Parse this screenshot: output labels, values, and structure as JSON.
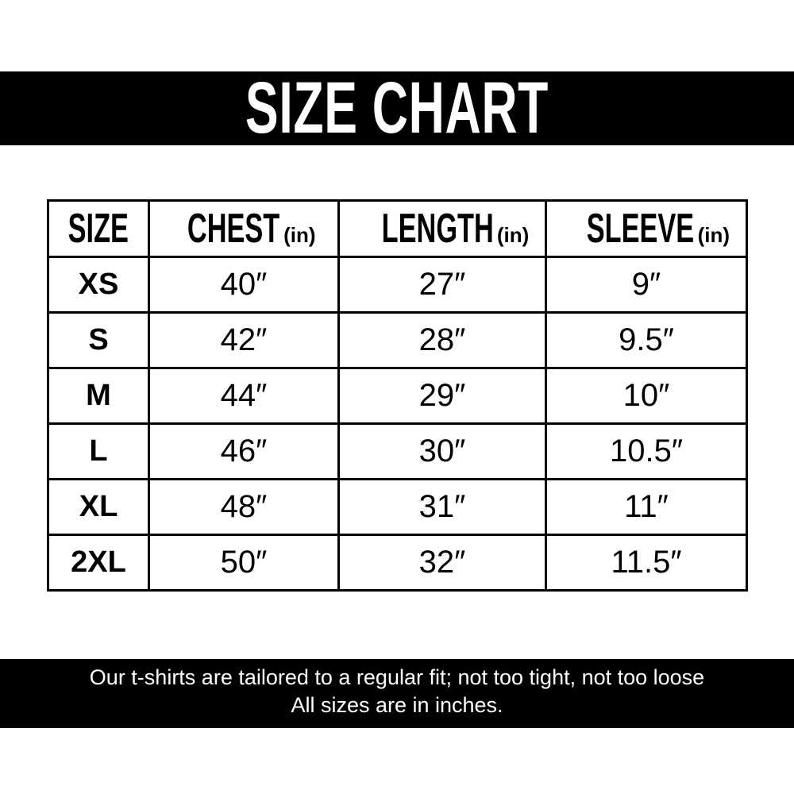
{
  "title": "SIZE CHART",
  "table": {
    "headers": [
      {
        "label": "SIZE",
        "unit": ""
      },
      {
        "label": "CHEST",
        "unit": "(in)"
      },
      {
        "label": "LENGTH",
        "unit": "(in)"
      },
      {
        "label": "SLEEVE",
        "unit": "(in)"
      }
    ],
    "rows": [
      [
        "XS",
        "40″",
        "27″",
        "9″"
      ],
      [
        "S",
        "42″",
        "28″",
        "9.5″"
      ],
      [
        "M",
        "44″",
        "29″",
        "10″"
      ],
      [
        "L",
        "46″",
        "30″",
        "10.5″"
      ],
      [
        "XL",
        "48″",
        "31″",
        "11″"
      ],
      [
        "2XL",
        "50″",
        "32″",
        "11.5″"
      ]
    ]
  },
  "footer": {
    "line1": "Our t-shirts are tailored to a regular fit; not too tight, not too loose",
    "line2": "All sizes are in inches."
  },
  "colors": {
    "bar": "#000000",
    "bar_text": "#ffffff",
    "background": "#ffffff"
  }
}
